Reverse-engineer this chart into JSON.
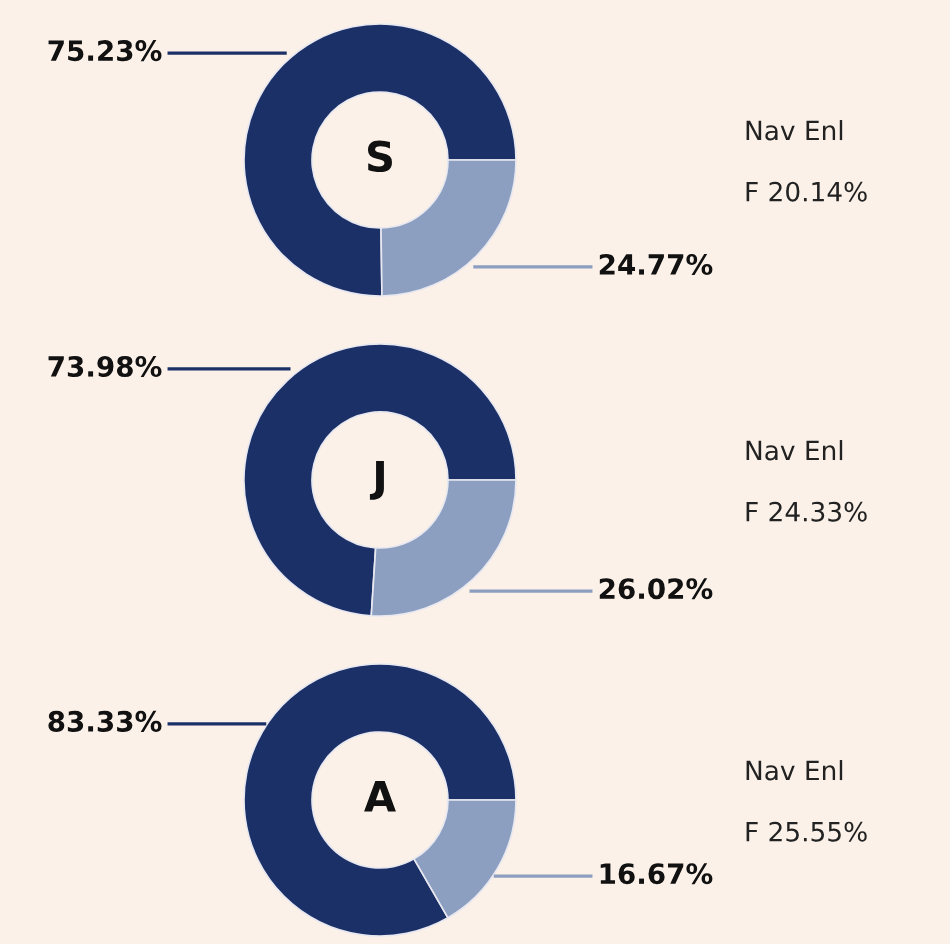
{
  "chart_data": [
    {
      "type": "donut",
      "title": "S",
      "categories": [
        null,
        null
      ],
      "values": [
        75.23,
        24.77
      ],
      "colors": [
        "#1c3068",
        "#8d9fc0"
      ],
      "value_labels": [
        "75.23%",
        "24.77%"
      ],
      "annotations": [
        "Nav Enl",
        "F 20.14%"
      ]
    },
    {
      "type": "donut",
      "title": "J",
      "categories": [
        null,
        null
      ],
      "values": [
        73.98,
        26.02
      ],
      "colors": [
        "#1c3068",
        "#8d9fc0"
      ],
      "value_labels": [
        "73.98%",
        "26.02%"
      ],
      "annotations": [
        "Nav Enl",
        "F 24.33%"
      ]
    },
    {
      "type": "donut",
      "title": "A",
      "categories": [
        null,
        null
      ],
      "values": [
        83.33,
        16.67
      ],
      "colors": [
        "#1c3068",
        "#8d9fc0"
      ],
      "value_labels": [
        "83.33%",
        "16.67%"
      ],
      "annotations": [
        "Nav Enl",
        "F 25.55%"
      ]
    }
  ]
}
